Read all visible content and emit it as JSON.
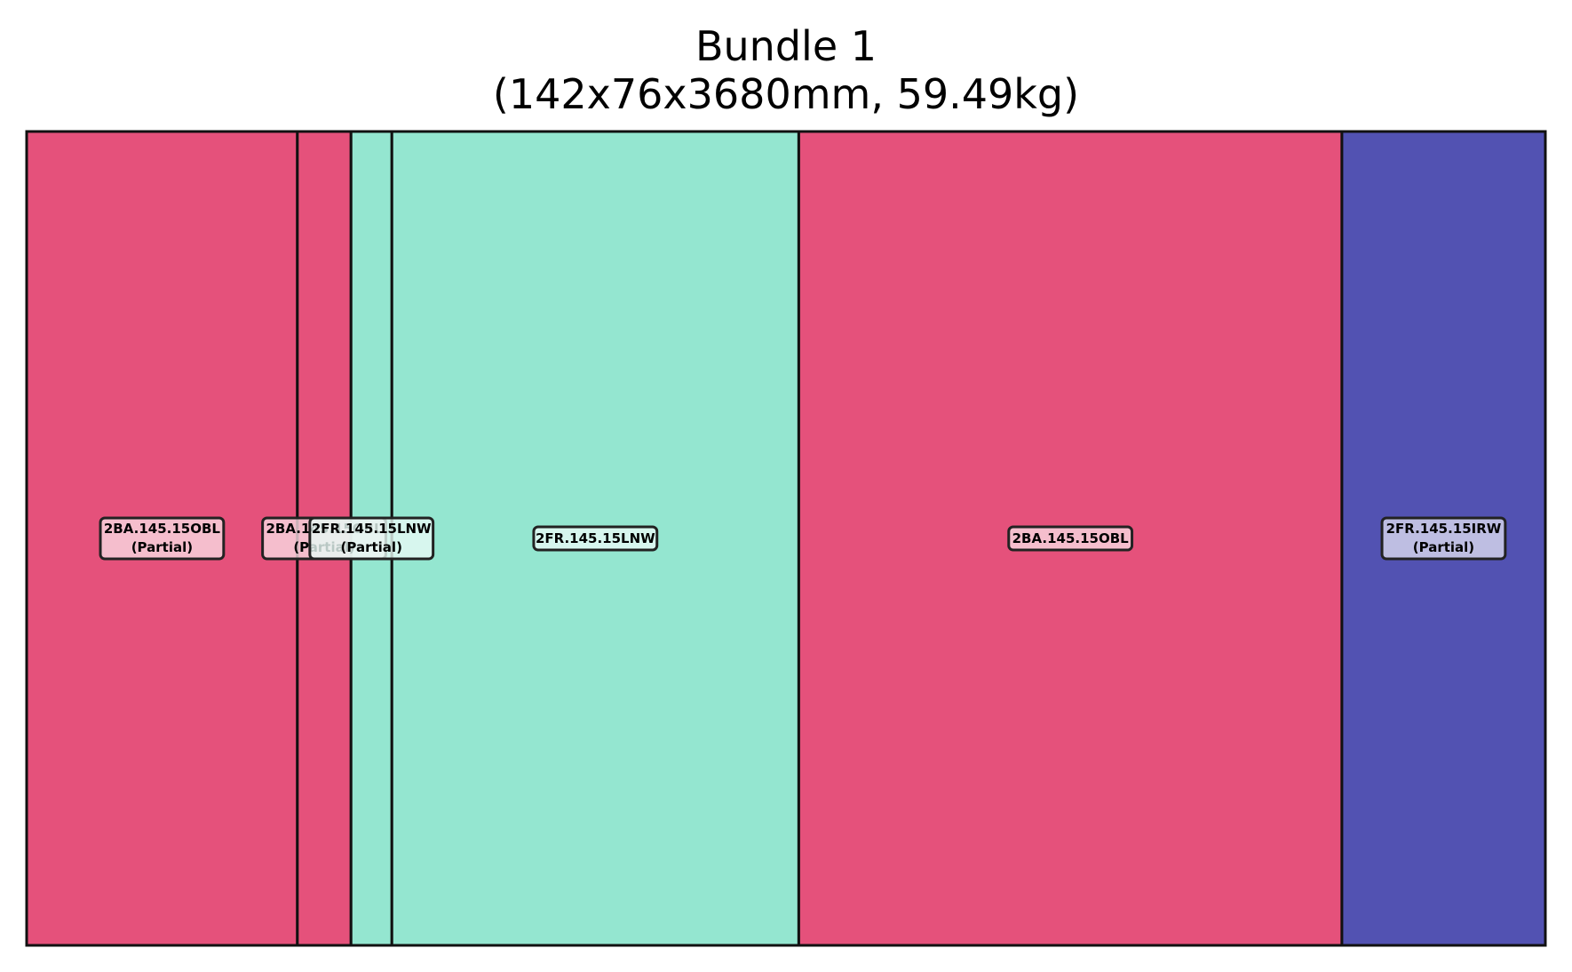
{
  "title": {
    "line1": "Bundle 1",
    "line2": "(142x76x3680mm, 59.49kg)"
  },
  "colors": {
    "2BA.145.15OBL": "#e5517b",
    "2FR.145.15LNW": "#94e6d0",
    "2FR.145.15IRW": "#5252b2",
    "outline": "#111111"
  },
  "bundle": {
    "length_mm": 3680,
    "segments": [
      {
        "piece": "2BA.145.15OBL",
        "partial": true,
        "start_mm": 0,
        "end_mm": 656,
        "label_line1": "2BA.145.15OBL",
        "label_line2": "(Partial)"
      },
      {
        "piece": "2BA.145.15OBL",
        "partial": true,
        "start_mm": 656,
        "end_mm": 786,
        "label_line1": "2BA.145.15OBL",
        "label_line2": "(Partial)"
      },
      {
        "piece": "2FR.145.15LNW",
        "partial": true,
        "start_mm": 786,
        "end_mm": 885,
        "label_line1": "2FR.145.15LNW",
        "label_line2": "(Partial)"
      },
      {
        "piece": "2FR.145.15LNW",
        "partial": false,
        "start_mm": 885,
        "end_mm": 1871,
        "label_line1": "2FR.145.15LNW",
        "label_line2": ""
      },
      {
        "piece": "2BA.145.15OBL",
        "partial": false,
        "start_mm": 1871,
        "end_mm": 3187,
        "label_line1": "2BA.145.15OBL",
        "label_line2": ""
      },
      {
        "piece": "2FR.145.15IRW",
        "partial": true,
        "start_mm": 3187,
        "end_mm": 3680,
        "label_line1": "2FR.145.15IRW",
        "label_line2": "(Partial)"
      }
    ]
  }
}
